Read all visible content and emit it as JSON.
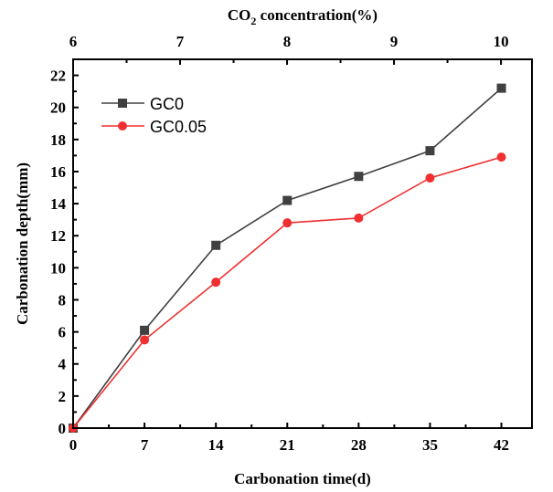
{
  "chart_data": {
    "type": "line",
    "xlabel": "Carbonation time(d)",
    "ylabel": "Carbonation depth(mm)",
    "top_xlabel": {
      "prefix": "CO",
      "sub": "2",
      "suffix": " concentration(%)"
    },
    "x": [
      0,
      7,
      14,
      21,
      28,
      35,
      42
    ],
    "xlim": [
      0,
      45
    ],
    "ylim": [
      0,
      23
    ],
    "xticks": [
      "0",
      "7",
      "14",
      "21",
      "28",
      "35",
      "42"
    ],
    "yticks": [
      "0",
      "2",
      "4",
      "6",
      "8",
      "10",
      "12",
      "14",
      "16",
      "18",
      "20",
      "22"
    ],
    "top_xticks": [
      "6",
      "7",
      "8",
      "9",
      "10"
    ],
    "top_xlim": [
      6,
      10.29
    ],
    "legend_position": "top-left",
    "grid": false,
    "series": [
      {
        "name": "GC0",
        "color": "#404040",
        "marker": "square",
        "values": [
          0,
          6.1,
          11.4,
          14.2,
          15.7,
          17.3,
          21.2
        ]
      },
      {
        "name": "GC0.05",
        "color": "#f03030",
        "marker": "circle",
        "values": [
          0,
          5.5,
          9.1,
          12.8,
          13.1,
          15.6,
          16.9
        ]
      }
    ]
  }
}
